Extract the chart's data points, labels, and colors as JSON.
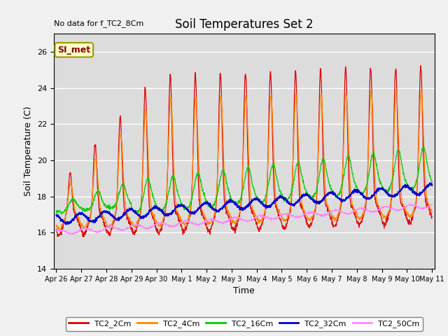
{
  "title": "Soil Temperatures Set 2",
  "xlabel": "Time",
  "ylabel": "Soil Temperature (C)",
  "note": "No data for f_TC2_8Cm",
  "legend_label": "SI_met",
  "ylim": [
    14,
    27
  ],
  "yticks": [
    14,
    16,
    18,
    20,
    22,
    24,
    26
  ],
  "series_colors": {
    "TC2_2Cm": "#dd0000",
    "TC2_4Cm": "#ff8800",
    "TC2_16Cm": "#00cc00",
    "TC2_32Cm": "#0000cc",
    "TC2_50Cm": "#ff88ff"
  },
  "xtick_labels": [
    "Apr 26",
    "Apr 27",
    "Apr 28",
    "Apr 29",
    "Apr 30",
    "May 1",
    "May 2",
    "May 3",
    "May 4",
    "May 5",
    "May 6",
    "May 7",
    "May 8",
    "May 9",
    "May 10",
    "May 11"
  ],
  "num_points": 1440
}
